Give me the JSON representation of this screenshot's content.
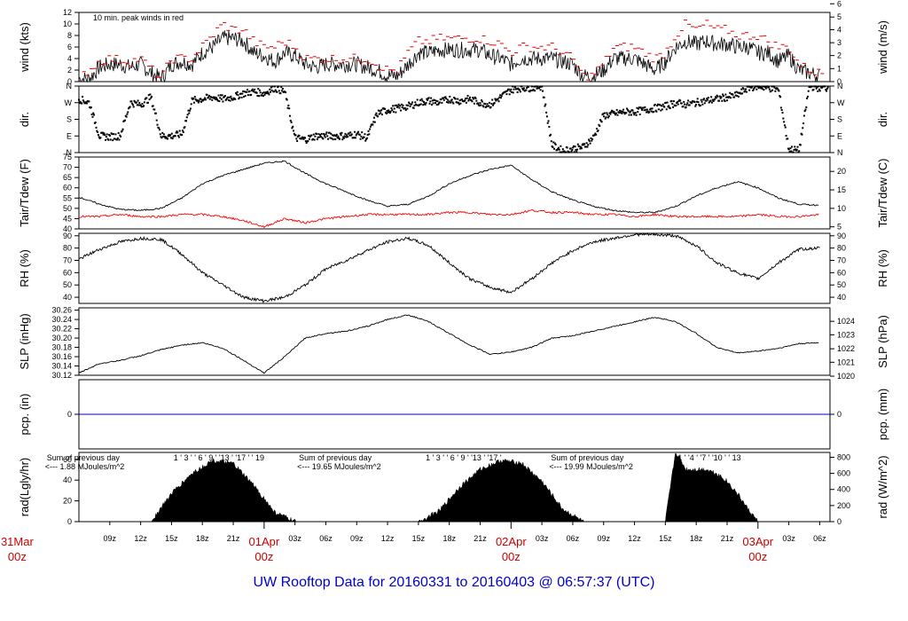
{
  "footer_title": "UW Rooftop Data for 20160331  to  20160403 @ 06:57:37  (UTC)",
  "colors": {
    "frame": "#000000",
    "wind_peak": "#dd0000",
    "tdew": "#ff0000",
    "pcp": "#0000cc",
    "annot_purple": "#9900cc",
    "date_red": "#cc0000",
    "footer": "#0000cc"
  },
  "time_axis": {
    "start": "2016-03-31T06:00Z",
    "end": "2016-04-03T07:00Z",
    "ticks": [
      {
        "hour": 3,
        "label": "09z"
      },
      {
        "hour": 6,
        "label": "12z"
      },
      {
        "hour": 9,
        "label": "15z"
      },
      {
        "hour": 12,
        "label": "18z"
      },
      {
        "hour": 15,
        "label": "21z"
      },
      {
        "hour": 21,
        "label": "03z"
      },
      {
        "hour": 24,
        "label": "06z"
      },
      {
        "hour": 27,
        "label": "09z"
      },
      {
        "hour": 30,
        "label": "12z"
      },
      {
        "hour": 33,
        "label": "15z"
      },
      {
        "hour": 36,
        "label": "18z"
      },
      {
        "hour": 39,
        "label": "21z"
      },
      {
        "hour": 45,
        "label": "03z"
      },
      {
        "hour": 48,
        "label": "06z"
      },
      {
        "hour": 51,
        "label": "09z"
      },
      {
        "hour": 54,
        "label": "12z"
      },
      {
        "hour": 57,
        "label": "15z"
      },
      {
        "hour": 60,
        "label": "18z"
      },
      {
        "hour": 63,
        "label": "21z"
      },
      {
        "hour": 69,
        "label": "03z"
      },
      {
        "hour": 72,
        "label": "06z"
      }
    ],
    "date_marks": [
      {
        "hour": -6,
        "date": "31Mar",
        "time": "00z"
      },
      {
        "hour": 18,
        "date": "01Apr",
        "time": "00z"
      },
      {
        "hour": 42,
        "date": "02Apr",
        "time": "00z"
      },
      {
        "hour": 66,
        "date": "03Apr",
        "time": "00z"
      }
    ]
  },
  "panels": [
    {
      "id": "wind",
      "left_label": "wind (kts)",
      "right_label": "wind (m/s)",
      "left_ticks": [
        "0",
        "2",
        "4",
        "6",
        "8",
        "10",
        "12"
      ],
      "right_ticks": [
        "0",
        "1",
        "2",
        "3",
        "4",
        "5",
        "6"
      ],
      "annotation": "10 min. peak winds in red"
    },
    {
      "id": "dir",
      "left_label": "dir.",
      "right_label": "dir.",
      "left_ticks": [
        "N",
        "E",
        "S",
        "W",
        "N"
      ],
      "right_ticks": [
        "N",
        "E",
        "S",
        "W",
        "N"
      ]
    },
    {
      "id": "temp",
      "left_label": "Tair/Tdew (F)",
      "right_label": "Tair/Tdew (C)",
      "left_ticks": [
        "40",
        "45",
        "50",
        "55",
        "60",
        "65",
        "70",
        "75"
      ],
      "right_ticks": [
        "5",
        "10",
        "15",
        "20"
      ]
    },
    {
      "id": "rh",
      "left_label": "RH (%)",
      "right_label": "RH (%)",
      "left_ticks": [
        "40",
        "50",
        "60",
        "70",
        "80",
        "90"
      ],
      "right_ticks": [
        "40",
        "50",
        "60",
        "70",
        "80",
        "90"
      ]
    },
    {
      "id": "slp",
      "left_label": "SLP (inHg)",
      "right_label": "SLP (hPa)",
      "left_ticks": [
        "30.12",
        "30.14",
        "30.16",
        "30.18",
        "30.20",
        "30.22",
        "30.24",
        "30.26"
      ],
      "right_ticks": [
        "1020",
        "1021",
        "1022",
        "1023",
        "1024"
      ]
    },
    {
      "id": "pcp",
      "left_label": "pcp. (in)",
      "right_label": "pcp. (mm)",
      "left_ticks": [
        "0"
      ],
      "right_ticks": [
        "0"
      ]
    },
    {
      "id": "rad",
      "left_label": "rad(Lgly/hr)",
      "right_label": "rad (W/m^2)",
      "left_ticks": [
        "0",
        "20",
        "40",
        "60"
      ],
      "right_ticks": [
        "0",
        "200",
        "400",
        "600",
        "800"
      ]
    }
  ],
  "rad_annotations": [
    {
      "hour": 0.5,
      "line1": "Sum of previous day",
      "line2": "<--- 1.88 MJoules/m^2",
      "hours": "1 ' 3 ' ' 6 ' 9 ' '13 ' '17 ' ' 19"
    },
    {
      "hour": 25,
      "line1": "Sum of previous day",
      "line2": "<--- 19.65 MJoules/m^2",
      "hours": "1 ' 3 ' ' 6 ' 9 ' '13 ' '17 '"
    },
    {
      "hour": 49.5,
      "line1": "Sum of previous day",
      "line2": "<--- 19.99 MJoules/m^2",
      "hours": "1 ' '4 ' '7 ' '10 ' ' 13"
    }
  ],
  "chart_data": {
    "type": "line",
    "x_units": "hours since 2016-03-31T06:00Z",
    "series": [
      {
        "name": "wind speed (kts)",
        "x": [
          0,
          1,
          2,
          3,
          4,
          5,
          6,
          7,
          8,
          9,
          10,
          11,
          12,
          13,
          14,
          15,
          16,
          17,
          18,
          19,
          20,
          21,
          22,
          23,
          24,
          25,
          26,
          27,
          28,
          29,
          30,
          31,
          32,
          33,
          34,
          35,
          36,
          37,
          38,
          39,
          40,
          41,
          42,
          43,
          44,
          45,
          46,
          47,
          48,
          49,
          50,
          51,
          52,
          53,
          54,
          55,
          56,
          57,
          58,
          59,
          60,
          61,
          62,
          63,
          64,
          65,
          66,
          67,
          68,
          69,
          70,
          71,
          72
        ],
        "values": [
          0.5,
          0.5,
          2.5,
          3,
          3,
          2.5,
          3,
          1.5,
          0.5,
          3,
          3.5,
          3,
          5,
          6,
          7.5,
          7.5,
          7,
          5,
          4.5,
          3.5,
          5,
          4.5,
          3,
          2.5,
          3,
          3,
          3,
          3,
          2.5,
          2,
          1,
          1,
          3,
          5,
          5,
          5.5,
          5.5,
          5.5,
          5.5,
          5.5,
          4.5,
          4,
          3,
          4,
          4,
          4,
          4,
          3.5,
          3,
          1,
          1,
          2,
          4,
          4,
          4,
          3,
          2,
          3.5,
          6,
          7,
          6.5,
          7,
          6.5,
          6.5,
          6,
          6,
          5,
          5,
          3.5,
          4.5,
          2,
          1.5,
          1
        ]
      },
      {
        "name": "10 min peak winds (kts)",
        "x": [
          0,
          2,
          3,
          5,
          6,
          8,
          9,
          11,
          12,
          13,
          14,
          15,
          16,
          17,
          18,
          19,
          20,
          21,
          22,
          23,
          24,
          25,
          26,
          27,
          28,
          29,
          30,
          31,
          32,
          33,
          34,
          35,
          36,
          37,
          38,
          39,
          40,
          41,
          42,
          43,
          44,
          45,
          46,
          47,
          48,
          49,
          50,
          51,
          52,
          53,
          54,
          55,
          56,
          57,
          58,
          59,
          60,
          61,
          62,
          63,
          64,
          65,
          66,
          67,
          68,
          69,
          70,
          71,
          72
        ],
        "values": [
          0.5,
          3.5,
          4,
          3.5,
          4,
          0.5,
          4,
          4,
          6,
          8,
          10,
          9,
          9,
          7,
          6,
          6,
          7,
          6,
          4,
          4,
          4,
          4,
          4,
          4,
          4,
          3,
          2,
          2,
          5,
          7,
          7,
          7.5,
          7.5,
          7.5,
          7.5,
          7.5,
          7,
          6.5,
          5,
          6,
          6,
          6,
          6,
          5,
          4,
          1,
          1,
          3,
          6,
          6,
          6,
          5,
          4,
          5,
          8,
          10,
          9,
          10,
          9,
          9,
          8,
          8,
          8,
          7,
          6,
          6,
          3,
          2,
          1.5
        ]
      },
      {
        "name": "wind dir (deg)",
        "x": [
          0,
          1,
          2,
          3,
          4,
          5,
          6,
          7,
          8,
          9,
          10,
          11,
          12,
          13,
          14,
          15,
          16,
          17,
          18,
          19,
          20,
          21,
          22,
          23,
          24,
          25,
          26,
          27,
          28,
          29,
          30,
          31,
          32,
          33,
          34,
          35,
          36,
          37,
          38,
          39,
          40,
          41,
          42,
          43,
          44,
          45,
          46,
          47,
          48,
          49,
          50,
          51,
          52,
          53,
          54,
          55,
          56,
          57,
          58,
          59,
          60,
          61,
          62,
          63,
          64,
          65,
          66,
          67,
          68,
          69,
          70,
          71,
          72
        ],
        "values": [
          290,
          270,
          90,
          85,
          90,
          270,
          260,
          300,
          90,
          90,
          100,
          280,
          290,
          300,
          290,
          300,
          320,
          330,
          320,
          350,
          330,
          80,
          70,
          90,
          90,
          90,
          90,
          100,
          80,
          210,
          230,
          240,
          250,
          270,
          280,
          270,
          290,
          280,
          290,
          270,
          260,
          300,
          340,
          350,
          350,
          360,
          40,
          10,
          20,
          30,
          80,
          200,
          210,
          220,
          220,
          230,
          240,
          250,
          270,
          260,
          270,
          280,
          290,
          300,
          310,
          350,
          360,
          350,
          340,
          20,
          10,
          360,
          350
        ]
      },
      {
        "name": "Tair (F)",
        "x": [
          0,
          2,
          4,
          6,
          8,
          10,
          12,
          14,
          16,
          18,
          20,
          22,
          24,
          26,
          28,
          30,
          32,
          34,
          36,
          38,
          40,
          42,
          44,
          46,
          48,
          50,
          52,
          54,
          56,
          58,
          60,
          62,
          64,
          66,
          68,
          70,
          72
        ],
        "values": [
          55.5,
          52,
          49.5,
          49,
          50,
          55,
          62,
          66,
          69,
          72,
          73,
          67,
          62,
          58,
          54,
          51,
          52,
          56,
          62,
          66,
          69,
          71,
          64,
          58,
          54,
          51,
          49,
          48,
          48,
          51,
          56,
          60,
          63,
          60,
          55,
          52,
          51.5
        ]
      },
      {
        "name": "Tdew (F)",
        "x": [
          0,
          2,
          4,
          6,
          8,
          10,
          12,
          14,
          16,
          18,
          20,
          22,
          24,
          26,
          28,
          30,
          32,
          34,
          36,
          38,
          40,
          42,
          44,
          46,
          48,
          50,
          52,
          54,
          56,
          58,
          60,
          62,
          64,
          66,
          68,
          70,
          72
        ],
        "values": [
          46,
          46,
          47,
          46,
          46,
          47,
          47,
          46,
          44,
          41,
          45,
          43,
          45,
          46,
          47,
          47,
          47,
          47,
          48,
          48,
          47,
          47,
          49,
          48,
          48,
          47,
          47,
          46,
          47,
          46,
          46,
          46,
          46,
          47,
          46,
          46,
          47
        ]
      },
      {
        "name": "RH (%)",
        "x": [
          0,
          2,
          4,
          6,
          8,
          10,
          12,
          14,
          16,
          18,
          20,
          22,
          24,
          26,
          28,
          30,
          32,
          34,
          36,
          38,
          40,
          42,
          44,
          46,
          48,
          50,
          52,
          54,
          56,
          58,
          60,
          62,
          64,
          66,
          68,
          70,
          72
        ],
        "values": [
          71,
          79,
          85,
          88,
          87,
          75,
          60,
          50,
          40,
          37,
          40,
          50,
          63,
          70,
          78,
          85,
          88,
          82,
          68,
          55,
          48,
          44,
          55,
          68,
          78,
          85,
          88,
          91,
          91,
          90,
          82,
          68,
          60,
          55,
          68,
          79,
          80
        ]
      },
      {
        "name": "SLP (inHg)",
        "x": [
          0,
          2,
          4,
          6,
          8,
          10,
          12,
          14,
          16,
          18,
          20,
          22,
          24,
          26,
          28,
          30,
          32,
          34,
          36,
          38,
          40,
          42,
          44,
          46,
          48,
          50,
          52,
          54,
          56,
          58,
          60,
          62,
          64,
          66,
          68,
          70,
          72
        ],
        "values": [
          30.125,
          30.145,
          30.152,
          30.162,
          30.175,
          30.185,
          30.19,
          30.178,
          30.152,
          30.125,
          30.16,
          30.2,
          30.21,
          30.215,
          30.225,
          30.24,
          30.25,
          30.235,
          30.21,
          30.185,
          30.165,
          30.17,
          30.18,
          30.2,
          30.205,
          30.215,
          30.225,
          30.235,
          30.245,
          30.235,
          30.21,
          30.18,
          30.168,
          30.172,
          30.178,
          30.188,
          30.19
        ]
      },
      {
        "name": "pcp (in)",
        "x": [
          0,
          72
        ],
        "values": [
          0,
          0
        ]
      },
      {
        "name": "rad (W/m^2)",
        "x": [
          7,
          9,
          11,
          13,
          15,
          17,
          19,
          21,
          23,
          25,
          27,
          29,
          31,
          33,
          35,
          37,
          39,
          41,
          43,
          45,
          47,
          49,
          51,
          53,
          55,
          56,
          56.5,
          57,
          58,
          59,
          60,
          61,
          62,
          63,
          64,
          65,
          66
        ],
        "values": [
          0,
          350,
          600,
          760,
          720,
          450,
          120,
          0,
          0,
          0,
          0,
          0,
          0,
          0,
          130,
          430,
          650,
          760,
          730,
          500,
          160,
          0,
          0,
          0,
          0,
          0,
          0,
          0,
          870,
          650,
          650,
          650,
          600,
          500,
          350,
          160,
          0
        ]
      }
    ],
    "ylim": {
      "wind": [
        0,
        12
      ],
      "dir": [
        0,
        360
      ],
      "temp": [
        40,
        75
      ],
      "rh": [
        35,
        92
      ],
      "slp": [
        30.12,
        30.265
      ],
      "pcp": [
        -0.05,
        0.05
      ],
      "rad": [
        0,
        860
      ]
    }
  }
}
